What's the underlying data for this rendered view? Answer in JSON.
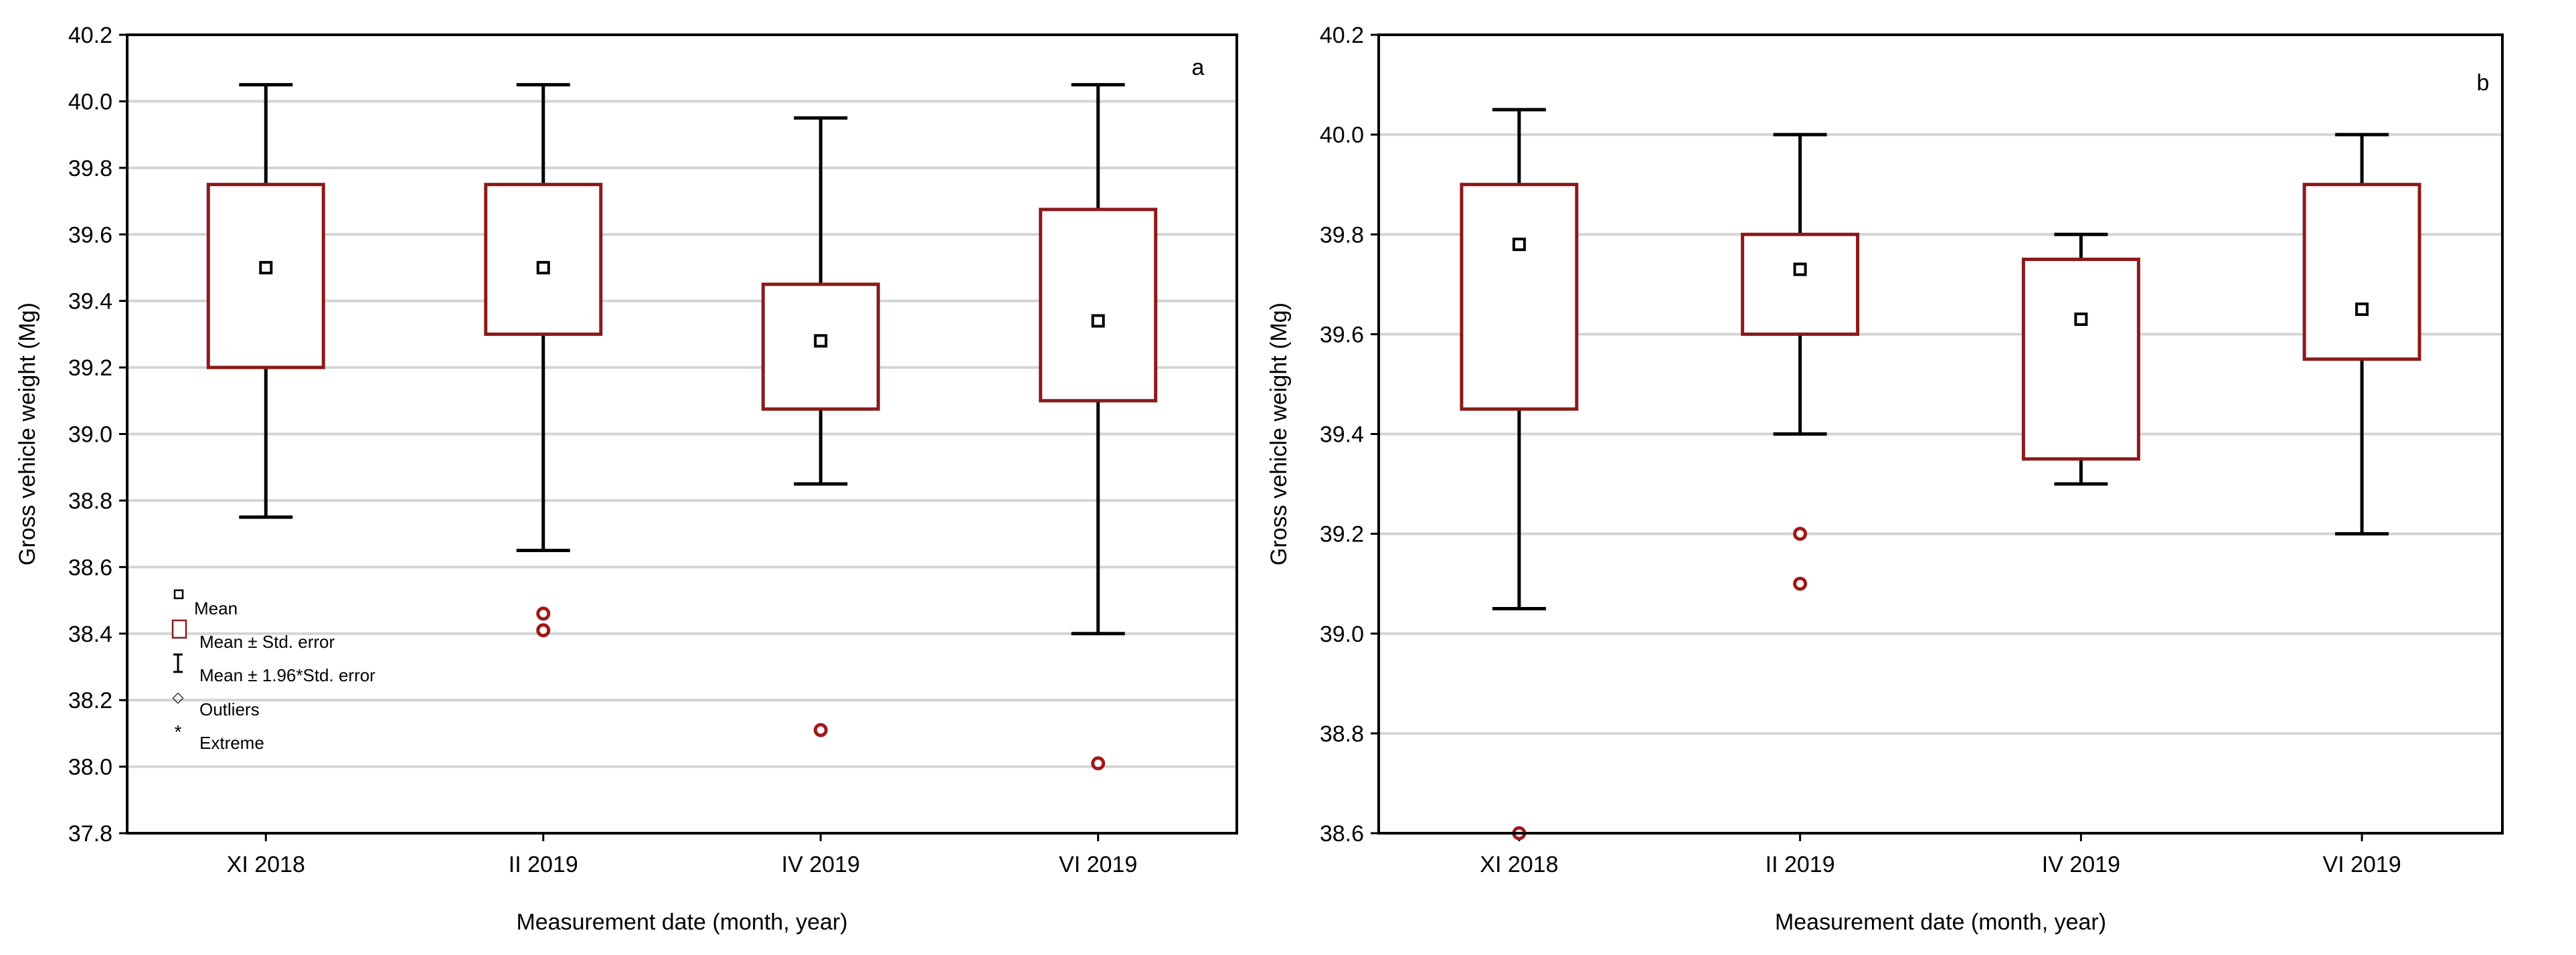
{
  "colors": {
    "box": "#8B1A1A",
    "whisker": "#000000",
    "grid": "#D4D4D4",
    "outlier": "#A01818",
    "mean": "#000000"
  },
  "legend": {
    "mean": "Mean",
    "box": "Mean ± Std. error",
    "whisker": "Mean ±  1.96*Std. error",
    "outliers": "Outliers",
    "extreme": "Extreme"
  },
  "chart_data": [
    {
      "type": "boxplot",
      "panel_label": "a",
      "xlabel": "Measurement date (month, year)",
      "ylabel": "Gross vehicle weight (Mg)",
      "ylim": [
        37.8,
        40.2
      ],
      "yticks": [
        37.8,
        38.0,
        38.2,
        38.4,
        38.6,
        38.8,
        39.0,
        39.2,
        39.4,
        39.6,
        39.8,
        40.0,
        40.2
      ],
      "yticklabels": [
        "37.8",
        "38.0",
        "38.2",
        "38.4",
        "38.6",
        "38.8",
        "39.0",
        "39.2",
        "39.4",
        "39.6",
        "39.8",
        "40.0",
        "40.2"
      ],
      "grid": true,
      "legend_position": "bottom-left",
      "categories": [
        "XI 2018",
        "II 2019",
        "IV 2019",
        "VI 2019"
      ],
      "mean": [
        39.5,
        39.5,
        39.28,
        39.34
      ],
      "box_low": [
        39.2,
        39.3,
        39.075,
        39.1
      ],
      "box_high": [
        39.75,
        39.75,
        39.45,
        39.675
      ],
      "whisker_low": [
        38.75,
        38.65,
        38.85,
        38.4
      ],
      "whisker_high": [
        40.05,
        40.05,
        39.95,
        40.05
      ],
      "outliers": [
        [],
        [
          38.46,
          38.41
        ],
        [
          38.11
        ],
        [
          38.01
        ]
      ]
    },
    {
      "type": "boxplot",
      "panel_label": "b",
      "xlabel": "Measurement date (month, year)",
      "ylabel": "Gross vehicle weight (Mg)",
      "ylim": [
        38.6,
        40.2
      ],
      "yticks": [
        38.6,
        38.8,
        39.0,
        39.2,
        39.4,
        39.6,
        39.8,
        40.0,
        40.2
      ],
      "yticklabels": [
        "38.6",
        "38.8",
        "39.0",
        "39.2",
        "39.4",
        "39.6",
        "39.8",
        "40.0",
        "40.2"
      ],
      "grid": true,
      "categories": [
        "XI 2018",
        "II 2019",
        "IV 2019",
        "VI 2019"
      ],
      "mean": [
        39.78,
        39.73,
        39.63,
        39.65
      ],
      "box_low": [
        39.45,
        39.6,
        39.35,
        39.55
      ],
      "box_high": [
        39.9,
        39.8,
        39.75,
        39.9
      ],
      "whisker_low": [
        39.05,
        39.4,
        39.3,
        39.2
      ],
      "whisker_high": [
        40.05,
        40.0,
        39.8,
        40.0
      ],
      "outliers": [
        [
          38.6
        ],
        [
          39.2,
          39.1
        ],
        [],
        []
      ]
    }
  ]
}
